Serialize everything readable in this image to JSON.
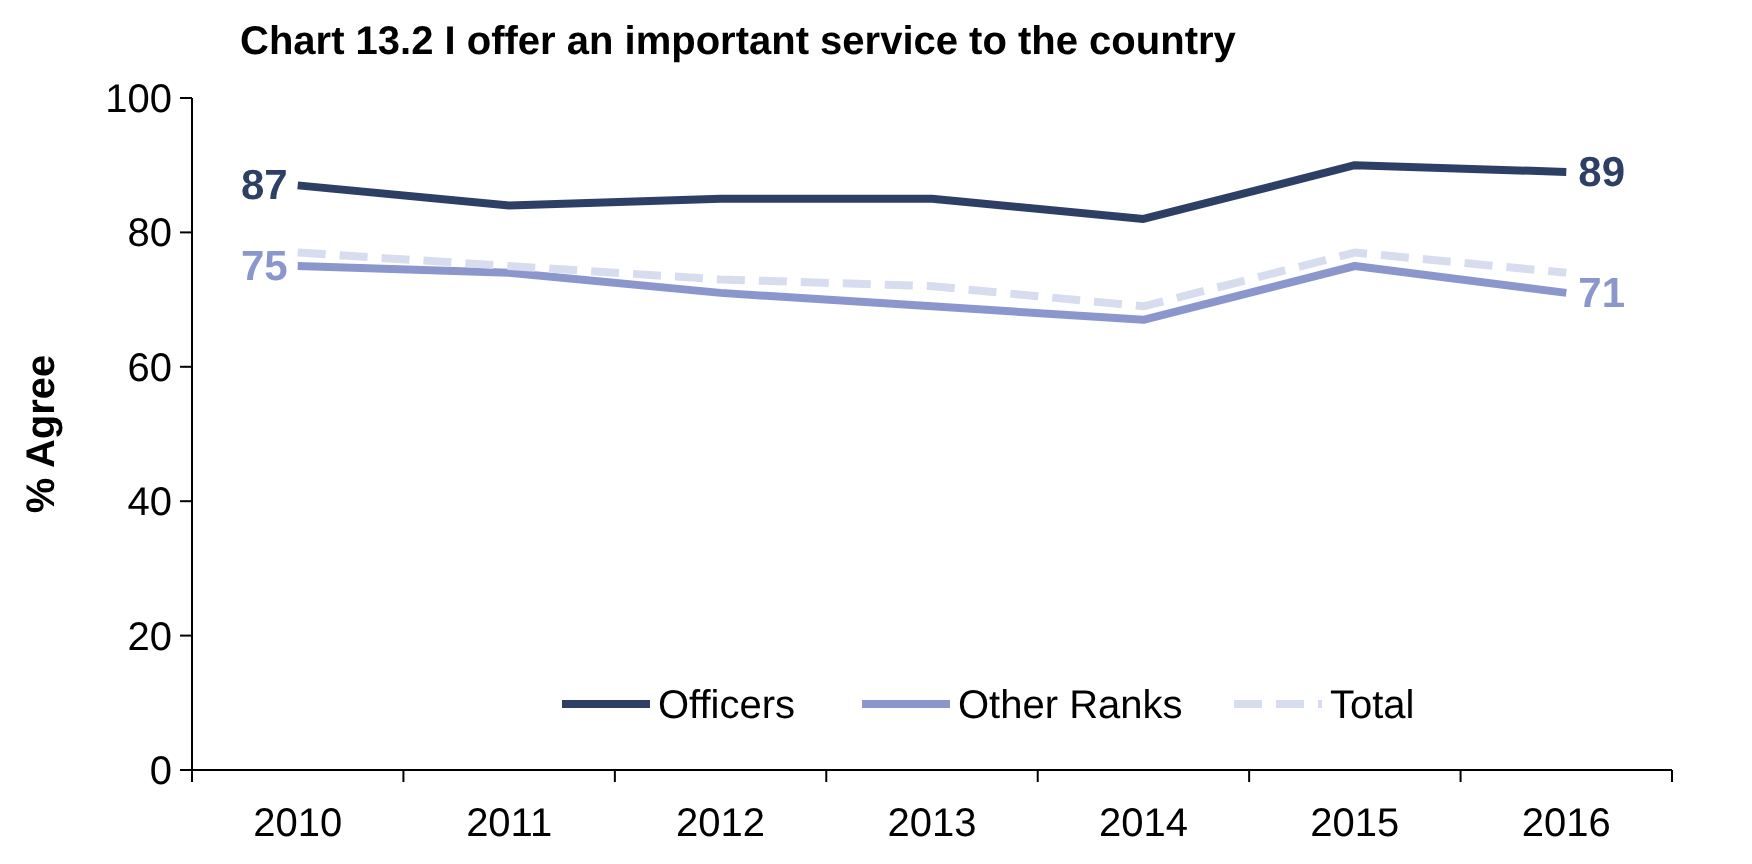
{
  "chart_data": {
    "type": "line",
    "title": "Chart 13.2 I offer an important service to the country",
    "ylabel": "% Agree",
    "categories": [
      "2010",
      "2011",
      "2012",
      "2013",
      "2014",
      "2015",
      "2016"
    ],
    "ylim": [
      0,
      100
    ],
    "yticks": [
      0,
      20,
      40,
      60,
      80,
      100
    ],
    "grid": false,
    "legend": "bottom",
    "marker": "none",
    "series": [
      {
        "name": "Officers",
        "color": "#2e3f66",
        "values": [
          87,
          84,
          85,
          85,
          82,
          90,
          89
        ],
        "value_labels": [
          "87",
          null,
          null,
          null,
          null,
          null,
          "89"
        ],
        "line_style": "solid"
      },
      {
        "name": "Other Ranks",
        "color": "#8b97cc",
        "values": [
          75,
          74,
          71,
          69,
          67,
          75,
          71
        ],
        "value_labels": [
          "75",
          null,
          null,
          null,
          null,
          null,
          "71"
        ],
        "line_style": "solid"
      },
      {
        "name": "Total",
        "color": "#d8dcef",
        "values": [
          77,
          75,
          73,
          72,
          69,
          77,
          74
        ],
        "line_style": "dashed"
      }
    ]
  }
}
